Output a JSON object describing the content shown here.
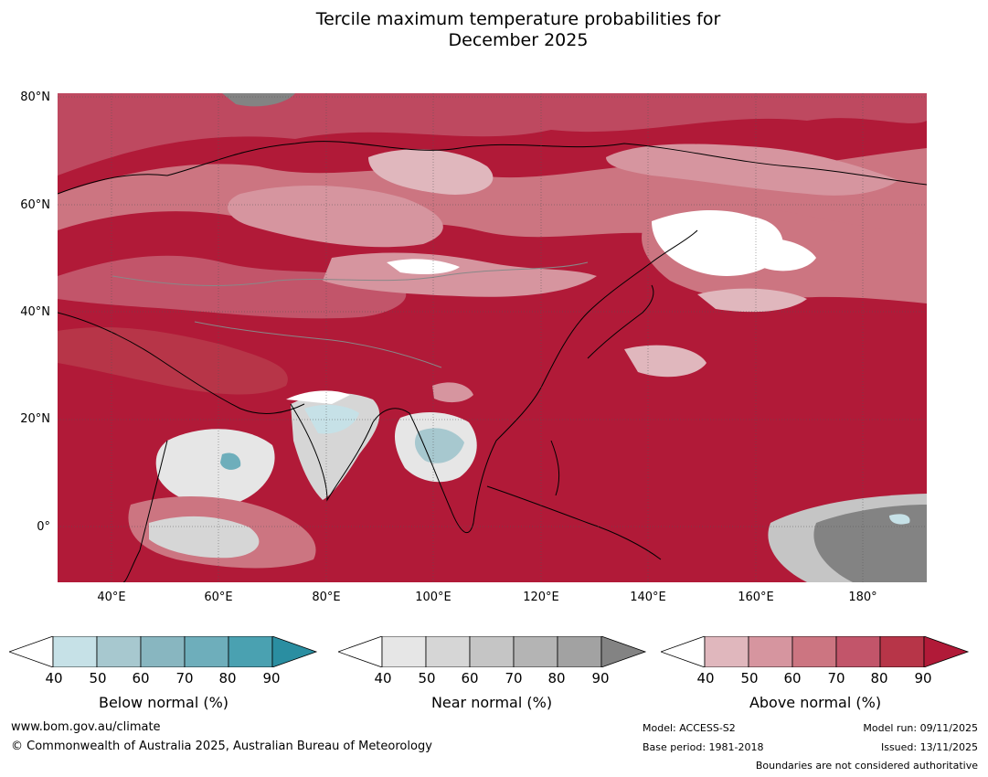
{
  "title": {
    "line1": "Tercile maximum temperature probabilities for",
    "line2": "December 2025"
  },
  "axes": {
    "lat_labels": [
      "80°N",
      "60°N",
      "40°N",
      "20°N",
      "0°"
    ],
    "lon_labels": [
      "40°E",
      "60°E",
      "80°E",
      "100°E",
      "120°E",
      "140°E",
      "160°E",
      "180°"
    ]
  },
  "colorbars": [
    {
      "label": "Below normal (%)",
      "ticks": [
        "40",
        "50",
        "60",
        "70",
        "80",
        "90"
      ],
      "colors": [
        "#ffffff",
        "#c6e1e7",
        "#a7c8cf",
        "#88b6c0",
        "#6eaebb",
        "#4aa1b1",
        "#2a8ea1"
      ]
    },
    {
      "label": "Near normal (%)",
      "ticks": [
        "40",
        "50",
        "60",
        "70",
        "80",
        "90"
      ],
      "colors": [
        "#ffffff",
        "#e6e6e6",
        "#d6d6d6",
        "#c5c5c5",
        "#b4b4b4",
        "#a2a2a2",
        "#838383"
      ]
    },
    {
      "label": "Above normal (%)",
      "ticks": [
        "40",
        "50",
        "60",
        "70",
        "80",
        "90"
      ],
      "colors": [
        "#ffffff",
        "#e0b7bd",
        "#d6959f",
        "#cc7581",
        "#c2556a",
        "#b73548",
        "#b11a38"
      ]
    }
  ],
  "footer": {
    "website": "www.bom.gov.au/climate",
    "copyright": "© Commonwealth of Australia 2025, Australian Bureau of Meteorology",
    "model": "Model: ACCESS-S2",
    "base_period": "Base period: 1981-2018",
    "model_run": "Model run: 09/11/2025",
    "issued": "Issued: 13/11/2025",
    "disclaimer": "Boundaries are not considered authoritative"
  }
}
